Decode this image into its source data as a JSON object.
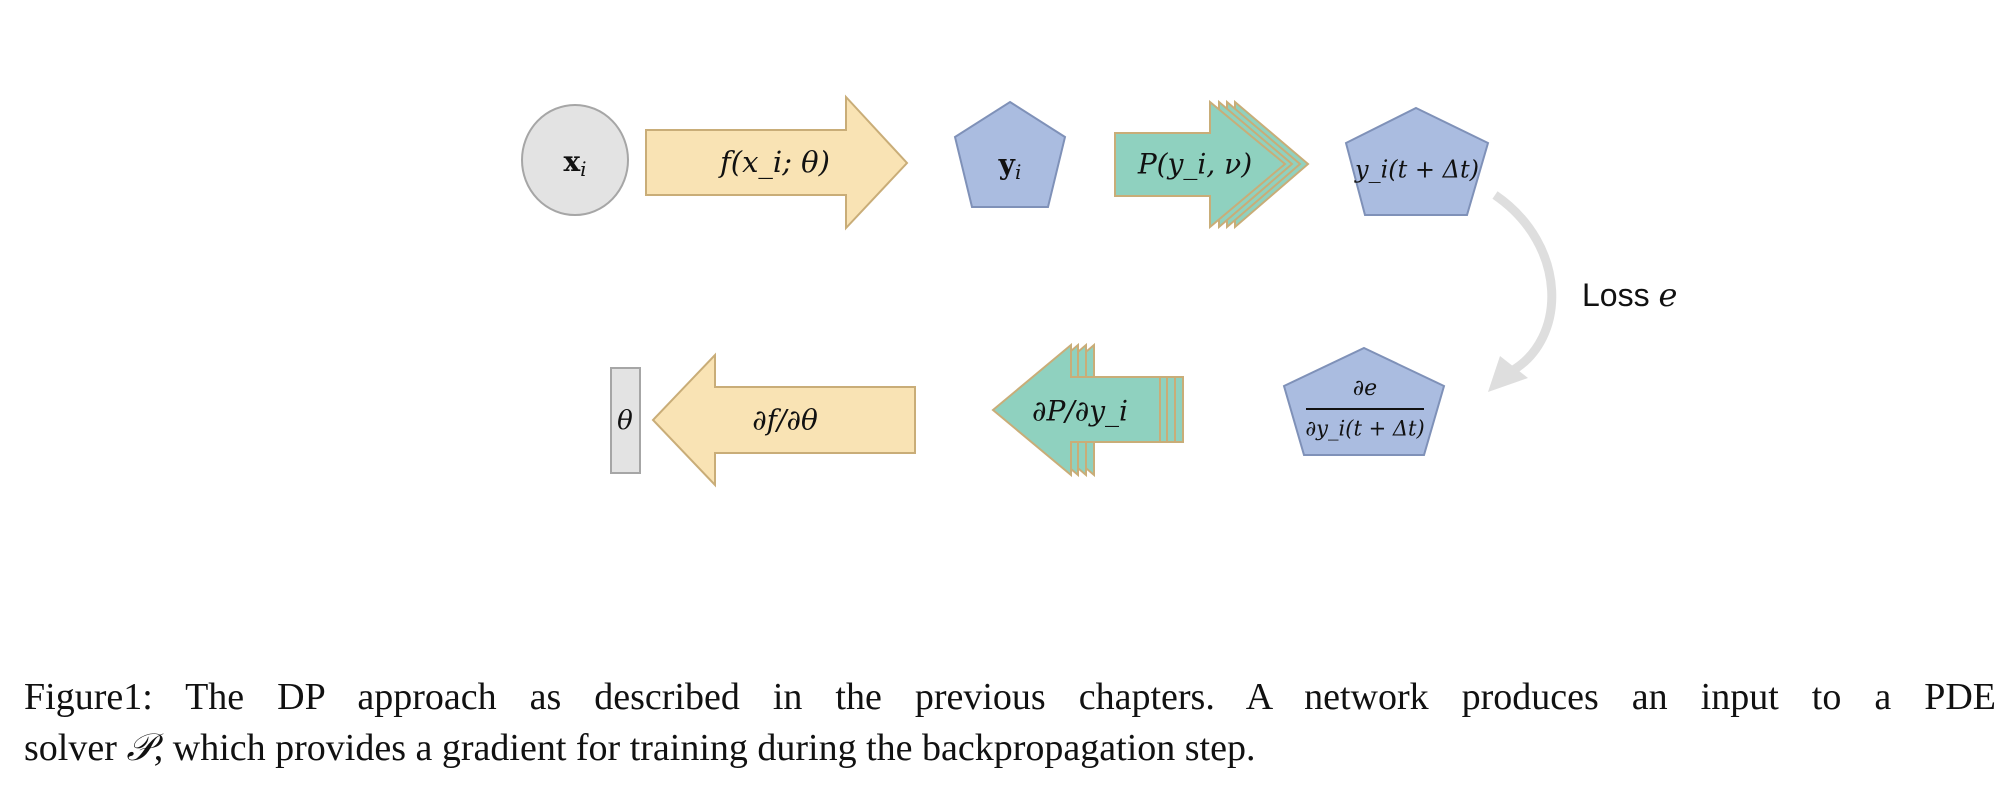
{
  "diagram": {
    "forward_row": {
      "input_node": {
        "symbol": "x",
        "subscript": "i"
      },
      "network_arrow": {
        "text": "f(x_i; θ)"
      },
      "output_node": {
        "symbol": "y",
        "subscript": "i"
      },
      "solver_arrow": {
        "text": "P(y_i, ν)"
      },
      "next_state_node": {
        "text": "y_i(t + Δt)"
      }
    },
    "loss": {
      "prefix": "Loss ",
      "symbol": "e"
    },
    "backward_row": {
      "gradient_node": {
        "numerator": "∂e",
        "denominator": "∂y_i(t + Δt)"
      },
      "solver_grad_arrow": {
        "text": "∂P/∂y_i"
      },
      "network_grad_arrow": {
        "text": "∂f/∂θ"
      },
      "param_node": {
        "symbol": "θ"
      }
    },
    "colors": {
      "node_fill": "#aabce0",
      "node_stroke": "#7f91b8",
      "circle_fill": "#e3e3e3",
      "circle_stroke": "#a6a6a6",
      "network_fill": "#f9e3b4",
      "network_stroke": "#c9ad78",
      "solver_fill": "#8fd1bf",
      "solver_stroke": "#c9ad78",
      "loss_arrow": "#dedede"
    }
  },
  "caption": {
    "line1": "Figure1: The DP approach as described in the previous chapters. A network produces an input to a PDE",
    "line2_before": "solver ",
    "line2_symbol": "𝒫",
    "line2_after": ", which provides a gradient for training during the backpropagation step."
  }
}
